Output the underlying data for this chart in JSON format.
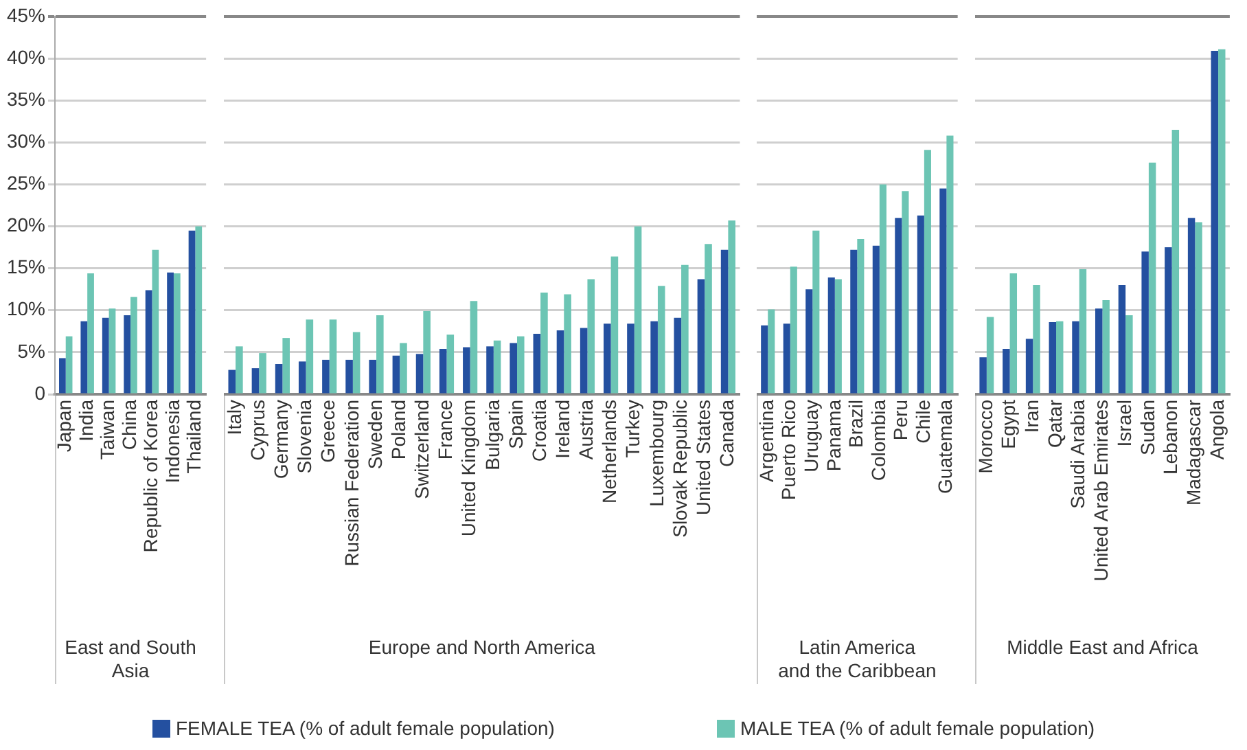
{
  "chart_data": [
    {
      "type": "bar",
      "xlabel": "East and South\nAsia",
      "categories": [
        "Japan",
        "India",
        "Taiwan",
        "China",
        "Republic of Korea",
        "Indonesia",
        "Thailand"
      ],
      "series": [
        {
          "name": "FEMALE TEA (% of adult female population)",
          "color": "#2450a0",
          "values": [
            4.3,
            8.7,
            9.1,
            9.4,
            12.4,
            14.5,
            19.5
          ]
        },
        {
          "name": "MALE TEA (% of adult female population)",
          "color": "#6cc5b4",
          "values": [
            6.9,
            14.4,
            10.2,
            11.6,
            17.2,
            14.4,
            20.0
          ]
        }
      ],
      "ylim": [
        0,
        45
      ],
      "yticks": [
        0,
        {
          "value": 5,
          "label": "5%"
        },
        {
          "value": 10,
          "label": "10%"
        },
        {
          "value": 15,
          "label": "15%"
        },
        {
          "value": 20,
          "label": "20%"
        },
        {
          "value": 25,
          "label": "25%"
        },
        {
          "value": 30,
          "label": "30%"
        },
        {
          "value": 35,
          "label": "35%"
        },
        {
          "value": 40,
          "label": "40%"
        },
        {
          "value": 45,
          "label": "45%"
        }
      ],
      "grid": "y",
      "legend": "bottom"
    },
    {
      "type": "bar",
      "xlabel": "Europe and North America",
      "categories": [
        "Italy",
        "Cyprus",
        "Germany",
        "Slovenia",
        "Greece",
        "Russian Federation",
        "Sweden",
        "Poland",
        "Switzerland",
        "France",
        "United Kingdom",
        "Bulgaria",
        "Spain",
        "Croatia",
        "Ireland",
        "Austria",
        "Netherlands",
        "Turkey",
        "Luxembourg",
        "Slovak Republic",
        "United States",
        "Canada"
      ],
      "series": [
        {
          "color": "#2450a0",
          "values": [
            2.9,
            3.1,
            3.6,
            3.9,
            4.1,
            4.1,
            4.1,
            4.6,
            4.8,
            5.4,
            5.6,
            5.7,
            6.1,
            7.2,
            7.6,
            7.9,
            8.4,
            8.4,
            8.7,
            9.1,
            13.7,
            17.2
          ]
        },
        {
          "color": "#6cc5b4",
          "values": [
            5.7,
            4.9,
            6.7,
            8.9,
            8.9,
            7.4,
            9.4,
            6.1,
            9.9,
            7.1,
            11.1,
            6.4,
            6.9,
            12.1,
            11.9,
            13.7,
            16.4,
            20.0,
            12.9,
            15.4,
            17.9,
            20.7
          ]
        }
      ],
      "ylim": [
        0,
        45
      ],
      "yticks": [
        0,
        5,
        10,
        15,
        20,
        25,
        30,
        35,
        40,
        45
      ],
      "grid": "y",
      "tick_labels": "x"
    },
    {
      "type": "bar",
      "xlabel": "Latin America\nand the Caribbean",
      "categories": [
        "Argentina",
        "Puerto Rico",
        "Uruguay",
        "Panama",
        "Brazil",
        "Colombia",
        "Peru",
        "Chile",
        "Guatemala"
      ],
      "series": [
        {
          "color": "#2450a0",
          "values": [
            8.2,
            8.4,
            12.5,
            13.9,
            17.2,
            17.7,
            21.0,
            21.3,
            24.5
          ]
        },
        {
          "color": "#6cc5b4",
          "values": [
            10.1,
            15.2,
            19.5,
            13.7,
            18.5,
            25.0,
            24.2,
            29.1,
            30.8
          ]
        }
      ],
      "ylim": [
        0,
        45
      ],
      "yticks": [
        0,
        5,
        10,
        15,
        20,
        25,
        30,
        35,
        40,
        45
      ],
      "grid": "y",
      "tick_labels": "x"
    },
    {
      "type": "bar",
      "xlabel": "Middle East and Africa",
      "categories": [
        "Morocco",
        "Egypt",
        "Iran",
        "Qatar",
        "Saudi Arabia",
        "United Arab Emirates",
        "Israel",
        "Sudan",
        "Lebanon",
        "Madagascar",
        "Angola"
      ],
      "series": [
        {
          "color": "#2450a0",
          "values": [
            4.4,
            5.4,
            6.6,
            8.6,
            8.7,
            10.2,
            13.0,
            17.0,
            17.5,
            21.0,
            40.9
          ]
        },
        {
          "color": "#6cc5b4",
          "values": [
            9.2,
            14.4,
            13.0,
            8.7,
            14.9,
            11.2,
            9.4,
            27.6,
            31.5,
            20.5,
            41.1
          ]
        }
      ],
      "ylim": [
        0,
        45
      ],
      "yticks": [
        0,
        5,
        10,
        15,
        20,
        25,
        30,
        35,
        40,
        45
      ],
      "grid": "y",
      "tick_labels": "x"
    }
  ]
}
